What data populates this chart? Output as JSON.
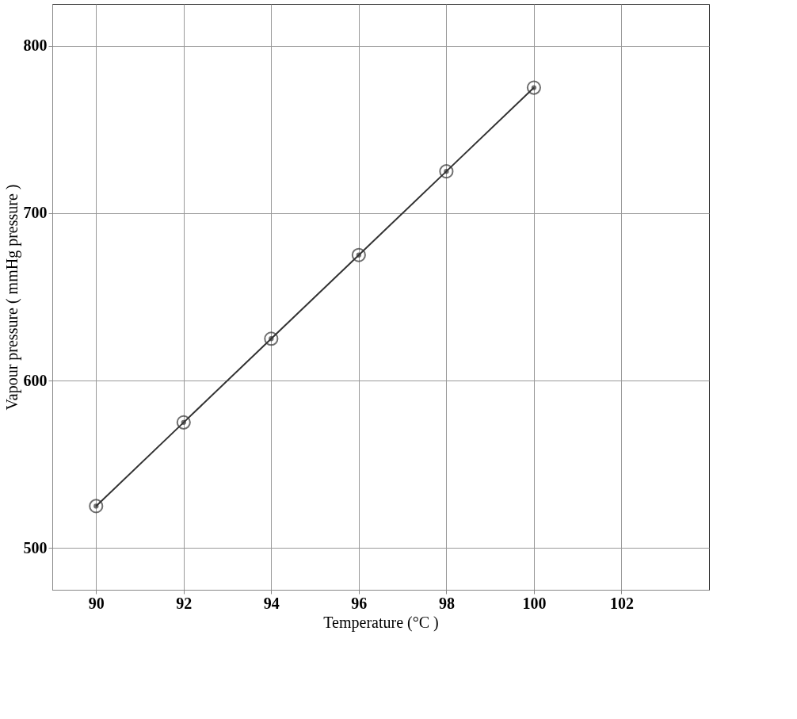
{
  "chart_data": {
    "type": "line",
    "xlabel": "Temperature (°C )",
    "ylabel": "Vapour pressure ( mmHg pressure )",
    "x": [
      90,
      92,
      94,
      96,
      98,
      100
    ],
    "series": [
      {
        "color": "#333333",
        "values": [
          525,
          575,
          625,
          675,
          725,
          775
        ]
      }
    ],
    "xlim": [
      89,
      104
    ],
    "ylim": [
      475,
      825
    ],
    "xticks": [
      90,
      92,
      94,
      96,
      98,
      100,
      102
    ],
    "yticks": [
      500,
      600,
      700,
      800
    ],
    "grid": true,
    "marker": "circle",
    "line_style": "solid",
    "legend": false
  }
}
